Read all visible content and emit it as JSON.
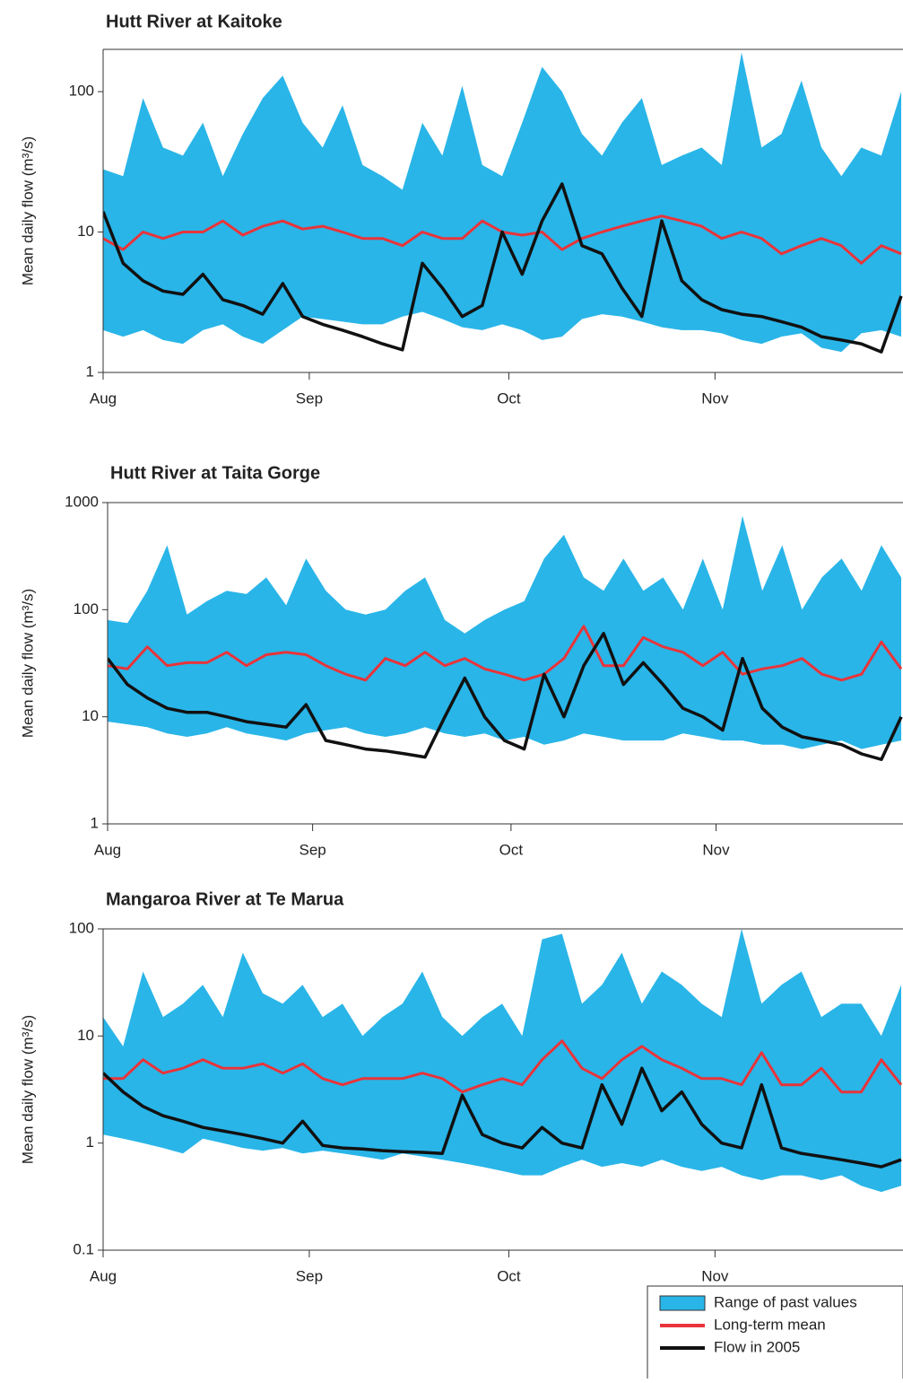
{
  "chart_data": [
    {
      "type": "band_line",
      "title": "Hutt River at Kaitoke",
      "y_label": "Mean daily flow (m³/s)",
      "log_scale": true,
      "x": [
        0,
        3,
        6,
        9,
        12,
        15,
        18,
        21,
        24,
        27,
        30,
        33,
        36,
        39,
        42,
        45,
        48,
        51,
        54,
        57,
        60,
        63,
        66,
        69,
        72,
        75,
        78,
        81,
        84,
        87,
        90,
        93,
        96,
        99,
        102,
        105,
        108,
        111,
        114,
        117,
        120
      ],
      "xlim": [
        0,
        120
      ],
      "xticks": [
        {
          "value": 0,
          "label": "Aug"
        },
        {
          "value": 31,
          "label": "Sep"
        },
        {
          "value": 61,
          "label": "Oct"
        },
        {
          "value": 92,
          "label": "Nov"
        }
      ],
      "ylim": [
        1,
        200
      ],
      "yticks": [
        1,
        10,
        100
      ],
      "series": [
        {
          "kind": "band",
          "color": "#29b5e8",
          "upper": [
            28,
            25,
            90,
            40,
            35,
            60,
            25,
            50,
            90,
            130,
            60,
            40,
            80,
            30,
            25,
            20,
            60,
            35,
            110,
            30,
            25,
            60,
            150,
            100,
            50,
            35,
            60,
            90,
            30,
            35,
            40,
            30,
            190,
            40,
            50,
            120,
            40,
            25,
            40,
            35,
            100
          ],
          "lower": [
            2,
            1.8,
            2,
            1.7,
            1.6,
            2,
            2.2,
            1.8,
            1.6,
            2,
            2.5,
            2.4,
            2.3,
            2.2,
            2.2,
            2.5,
            2.7,
            2.4,
            2.1,
            2,
            2.2,
            2,
            1.7,
            1.8,
            2.4,
            2.6,
            2.5,
            2.3,
            2.1,
            2,
            2,
            1.9,
            1.7,
            1.6,
            1.8,
            1.9,
            1.5,
            1.4,
            1.9,
            2,
            1.8
          ]
        },
        {
          "kind": "line",
          "color": "#e8343a",
          "values": [
            9,
            7.5,
            10,
            9,
            10,
            10,
            12,
            9.5,
            11,
            12,
            10.5,
            11,
            10,
            9,
            9,
            8,
            10,
            9,
            9,
            12,
            10,
            9.5,
            10,
            7.5,
            9,
            10,
            11,
            12,
            13,
            12,
            11,
            9,
            10,
            9,
            7,
            8,
            9,
            8,
            6,
            8,
            7
          ]
        },
        {
          "kind": "line",
          "color": "#111111",
          "values": [
            14,
            6,
            4.5,
            3.8,
            3.6,
            5,
            3.3,
            3,
            2.6,
            4.3,
            2.5,
            2.2,
            2,
            1.8,
            1.6,
            1.45,
            6,
            4,
            2.5,
            3,
            10,
            5,
            12,
            22,
            8,
            7,
            4,
            2.5,
            12,
            4.5,
            3.3,
            2.8,
            2.6,
            2.5,
            2.3,
            2.1,
            1.8,
            1.7,
            1.6,
            1.4,
            3.5
          ]
        }
      ]
    },
    {
      "type": "band_line",
      "title": "Hutt River at Taita Gorge",
      "y_label": "Mean daily flow (m³/s)",
      "log_scale": true,
      "x": [
        0,
        3,
        6,
        9,
        12,
        15,
        18,
        21,
        24,
        27,
        30,
        33,
        36,
        39,
        42,
        45,
        48,
        51,
        54,
        57,
        60,
        63,
        66,
        69,
        72,
        75,
        78,
        81,
        84,
        87,
        90,
        93,
        96,
        99,
        102,
        105,
        108,
        111,
        114,
        117,
        120
      ],
      "xlim": [
        0,
        120
      ],
      "xticks": [
        {
          "value": 0,
          "label": "Aug"
        },
        {
          "value": 31,
          "label": "Sep"
        },
        {
          "value": 61,
          "label": "Oct"
        },
        {
          "value": 92,
          "label": "Nov"
        }
      ],
      "ylim": [
        1,
        1000
      ],
      "yticks": [
        1,
        10,
        100,
        1000
      ],
      "series": [
        {
          "kind": "band",
          "color": "#29b5e8",
          "upper": [
            80,
            75,
            150,
            400,
            90,
            120,
            150,
            140,
            200,
            110,
            300,
            150,
            100,
            90,
            100,
            150,
            200,
            80,
            60,
            80,
            100,
            120,
            300,
            500,
            200,
            150,
            300,
            150,
            200,
            100,
            300,
            100,
            750,
            150,
            400,
            100,
            200,
            300,
            150,
            400,
            200
          ],
          "lower": [
            9,
            8.5,
            8,
            7,
            6.5,
            7,
            8,
            7,
            6.5,
            6,
            7,
            7.5,
            8,
            7,
            6.5,
            7,
            8,
            7,
            6.5,
            7,
            6,
            6.5,
            5.5,
            6,
            7,
            6.5,
            6,
            6,
            6,
            7,
            6.5,
            6,
            6,
            5.5,
            5.5,
            5,
            5.5,
            6,
            5,
            5.5,
            6
          ]
        },
        {
          "kind": "line",
          "color": "#e8343a",
          "values": [
            30,
            28,
            45,
            30,
            32,
            32,
            40,
            30,
            38,
            40,
            38,
            30,
            25,
            22,
            35,
            30,
            40,
            30,
            35,
            28,
            25,
            22,
            25,
            35,
            70,
            30,
            30,
            55,
            45,
            40,
            30,
            40,
            25,
            28,
            30,
            35,
            25,
            22,
            25,
            50,
            28
          ]
        },
        {
          "kind": "line",
          "color": "#111111",
          "values": [
            35,
            20,
            15,
            12,
            11,
            11,
            10,
            9,
            8.5,
            8,
            13,
            6,
            5.5,
            5,
            4.8,
            4.5,
            4.2,
            10,
            23,
            10,
            6,
            5,
            25,
            10,
            30,
            60,
            20,
            32,
            20,
            12,
            10,
            7.5,
            35,
            12,
            8,
            6.5,
            6,
            5.5,
            4.5,
            4,
            10
          ]
        }
      ]
    },
    {
      "type": "band_line",
      "title": "Mangaroa River at Te Marua",
      "y_label": "Mean daily flow (m³/s)",
      "log_scale": true,
      "x": [
        0,
        3,
        6,
        9,
        12,
        15,
        18,
        21,
        24,
        27,
        30,
        33,
        36,
        39,
        42,
        45,
        48,
        51,
        54,
        57,
        60,
        63,
        66,
        69,
        72,
        75,
        78,
        81,
        84,
        87,
        90,
        93,
        96,
        99,
        102,
        105,
        108,
        111,
        114,
        117,
        120
      ],
      "xlim": [
        0,
        120
      ],
      "xticks": [
        {
          "value": 0,
          "label": "Aug"
        },
        {
          "value": 31,
          "label": "Sep"
        },
        {
          "value": 61,
          "label": "Oct"
        },
        {
          "value": 92,
          "label": "Nov"
        }
      ],
      "ylim": [
        0.1,
        100
      ],
      "yticks": [
        0.1,
        1,
        10,
        100
      ],
      "legend": "lower right",
      "series": [
        {
          "kind": "band",
          "name": "Range of past values",
          "color": "#29b5e8",
          "upper": [
            15,
            8,
            40,
            15,
            20,
            30,
            15,
            60,
            25,
            20,
            30,
            15,
            20,
            10,
            15,
            20,
            40,
            15,
            10,
            15,
            20,
            10,
            80,
            90,
            20,
            30,
            60,
            20,
            40,
            30,
            20,
            15,
            100,
            20,
            30,
            40,
            15,
            20,
            20,
            10,
            30
          ],
          "lower": [
            1.2,
            1.1,
            1.0,
            0.9,
            0.8,
            1.1,
            1.0,
            0.9,
            0.85,
            0.9,
            0.8,
            0.85,
            0.8,
            0.75,
            0.7,
            0.8,
            0.75,
            0.7,
            0.65,
            0.6,
            0.55,
            0.5,
            0.5,
            0.6,
            0.7,
            0.6,
            0.65,
            0.6,
            0.7,
            0.6,
            0.55,
            0.6,
            0.5,
            0.45,
            0.5,
            0.5,
            0.45,
            0.5,
            0.4,
            0.35,
            0.4
          ]
        },
        {
          "kind": "line",
          "name": "Long-term mean",
          "color": "#e8343a",
          "values": [
            4,
            4,
            6,
            4.5,
            5,
            6,
            5,
            5,
            5.5,
            4.5,
            5.5,
            4,
            3.5,
            4,
            4,
            4,
            4.5,
            4,
            3,
            3.5,
            4,
            3.5,
            6,
            9,
            5,
            4,
            6,
            8,
            6,
            5,
            4,
            4,
            3.5,
            7,
            3.5,
            3.5,
            5,
            3,
            3,
            6,
            3.5
          ]
        },
        {
          "kind": "line",
          "name": "Flow in 2005",
          "color": "#111111",
          "values": [
            4.5,
            3,
            2.2,
            1.8,
            1.6,
            1.4,
            1.3,
            1.2,
            1.1,
            1.0,
            1.6,
            0.95,
            0.9,
            0.88,
            0.85,
            0.83,
            0.82,
            0.8,
            2.8,
            1.2,
            1.0,
            0.9,
            1.4,
            1.0,
            0.9,
            3.5,
            1.5,
            5,
            2,
            3,
            1.5,
            1,
            0.9,
            3.5,
            0.9,
            0.8,
            0.75,
            0.7,
            0.65,
            0.6,
            0.7
          ]
        }
      ]
    }
  ]
}
